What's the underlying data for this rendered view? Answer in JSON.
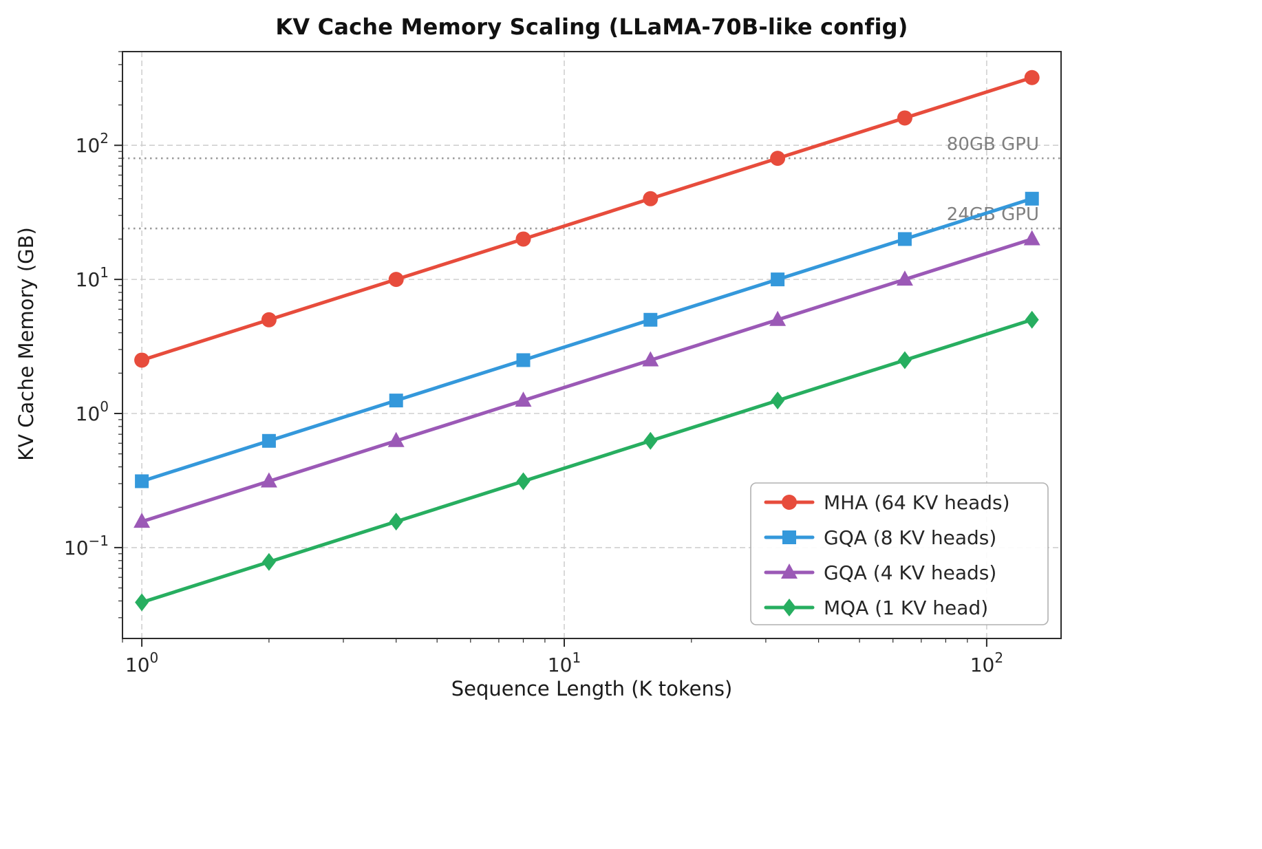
{
  "chart_data": {
    "type": "line",
    "title": "KV Cache Memory Scaling (LLaMA-70B-like config)",
    "xlabel": "Sequence Length (K tokens)",
    "ylabel": "KV Cache Memory (GB)",
    "x_scale": "log",
    "y_scale": "log",
    "xlim": [
      0.9,
      150
    ],
    "ylim": [
      0.021,
      500
    ],
    "grid": true,
    "legend_position": "lower right",
    "x": [
      1,
      2,
      4,
      8,
      16,
      32,
      64,
      128
    ],
    "series": [
      {
        "name": "MHA (64 KV heads)",
        "color": "#e74c3c",
        "marker": "circle",
        "values": [
          2.5,
          5,
          10,
          20,
          40,
          80,
          160,
          320
        ]
      },
      {
        "name": "GQA (8 KV heads)",
        "color": "#3498db",
        "marker": "square",
        "values": [
          0.3125,
          0.625,
          1.25,
          2.5,
          5,
          10,
          20,
          40
        ]
      },
      {
        "name": "GQA (4 KV heads)",
        "color": "#9b59b6",
        "marker": "triangle",
        "values": [
          0.15625,
          0.3125,
          0.625,
          1.25,
          2.5,
          5,
          10,
          20
        ]
      },
      {
        "name": "MQA (1 KV head)",
        "color": "#27ae60",
        "marker": "diamond",
        "values": [
          0.0390625,
          0.078125,
          0.15625,
          0.3125,
          0.625,
          1.25,
          2.5,
          5
        ]
      }
    ],
    "x_ticks": [
      {
        "value": 1,
        "base": "10",
        "exp": "0"
      },
      {
        "value": 10,
        "base": "10",
        "exp": "1"
      },
      {
        "value": 100,
        "base": "10",
        "exp": "2"
      }
    ],
    "y_ticks": [
      {
        "value": 0.1,
        "base": "10",
        "exp": "−1"
      },
      {
        "value": 1,
        "base": "10",
        "exp": "0"
      },
      {
        "value": 10,
        "base": "10",
        "exp": "1"
      },
      {
        "value": 100,
        "base": "10",
        "exp": "2"
      }
    ],
    "reference_lines": [
      {
        "y": 80,
        "label": "80GB GPU"
      },
      {
        "y": 24,
        "label": "24GB GPU"
      }
    ],
    "colors": {
      "grid": "#cfcfcf",
      "frame": "#2b2b2b",
      "ref_line": "#9a9a9a",
      "ref_label": "#808080",
      "tick_text": "#262626",
      "legend_border": "#b0b0b0",
      "legend_bg": "#ffffff"
    }
  }
}
